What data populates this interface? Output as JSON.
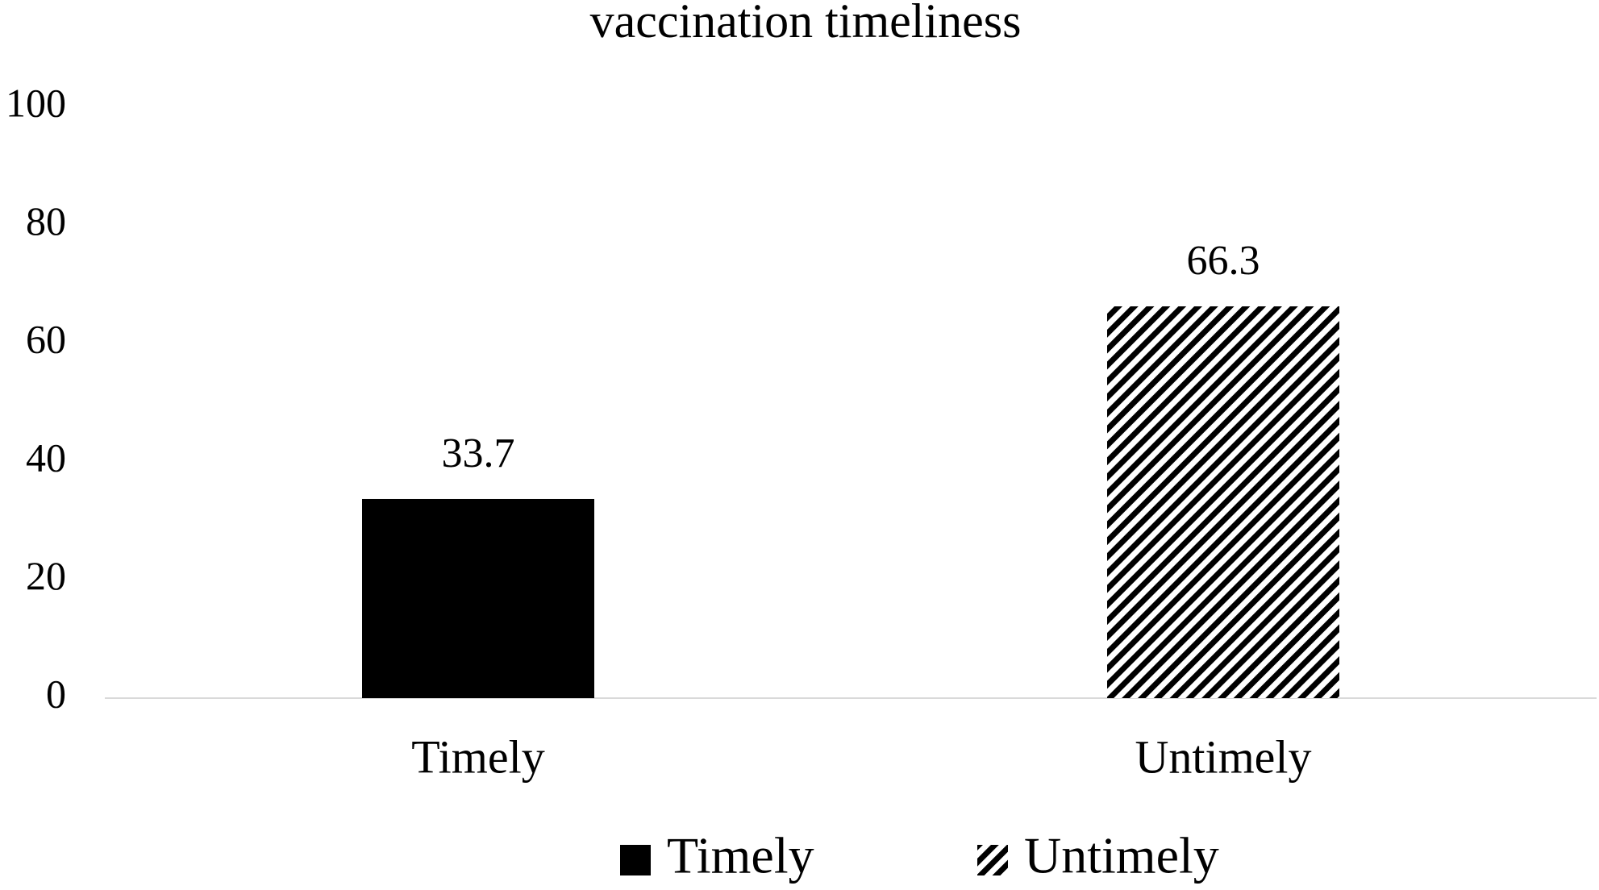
{
  "chart_data": {
    "type": "bar",
    "title": "vaccination timeliness",
    "categories": [
      "Timely",
      "Untimely"
    ],
    "series": [
      {
        "name": "Timely",
        "color": "#000000",
        "pattern": "solid",
        "values": [
          33.7,
          null
        ]
      },
      {
        "name": "Untimely",
        "color": "#000000",
        "pattern": "diagonal",
        "values": [
          null,
          66.3
        ]
      }
    ],
    "ylim": [
      0,
      100
    ],
    "yticks": [
      0,
      20,
      40,
      60,
      80,
      100
    ],
    "grid": false,
    "legend": "bottom"
  }
}
